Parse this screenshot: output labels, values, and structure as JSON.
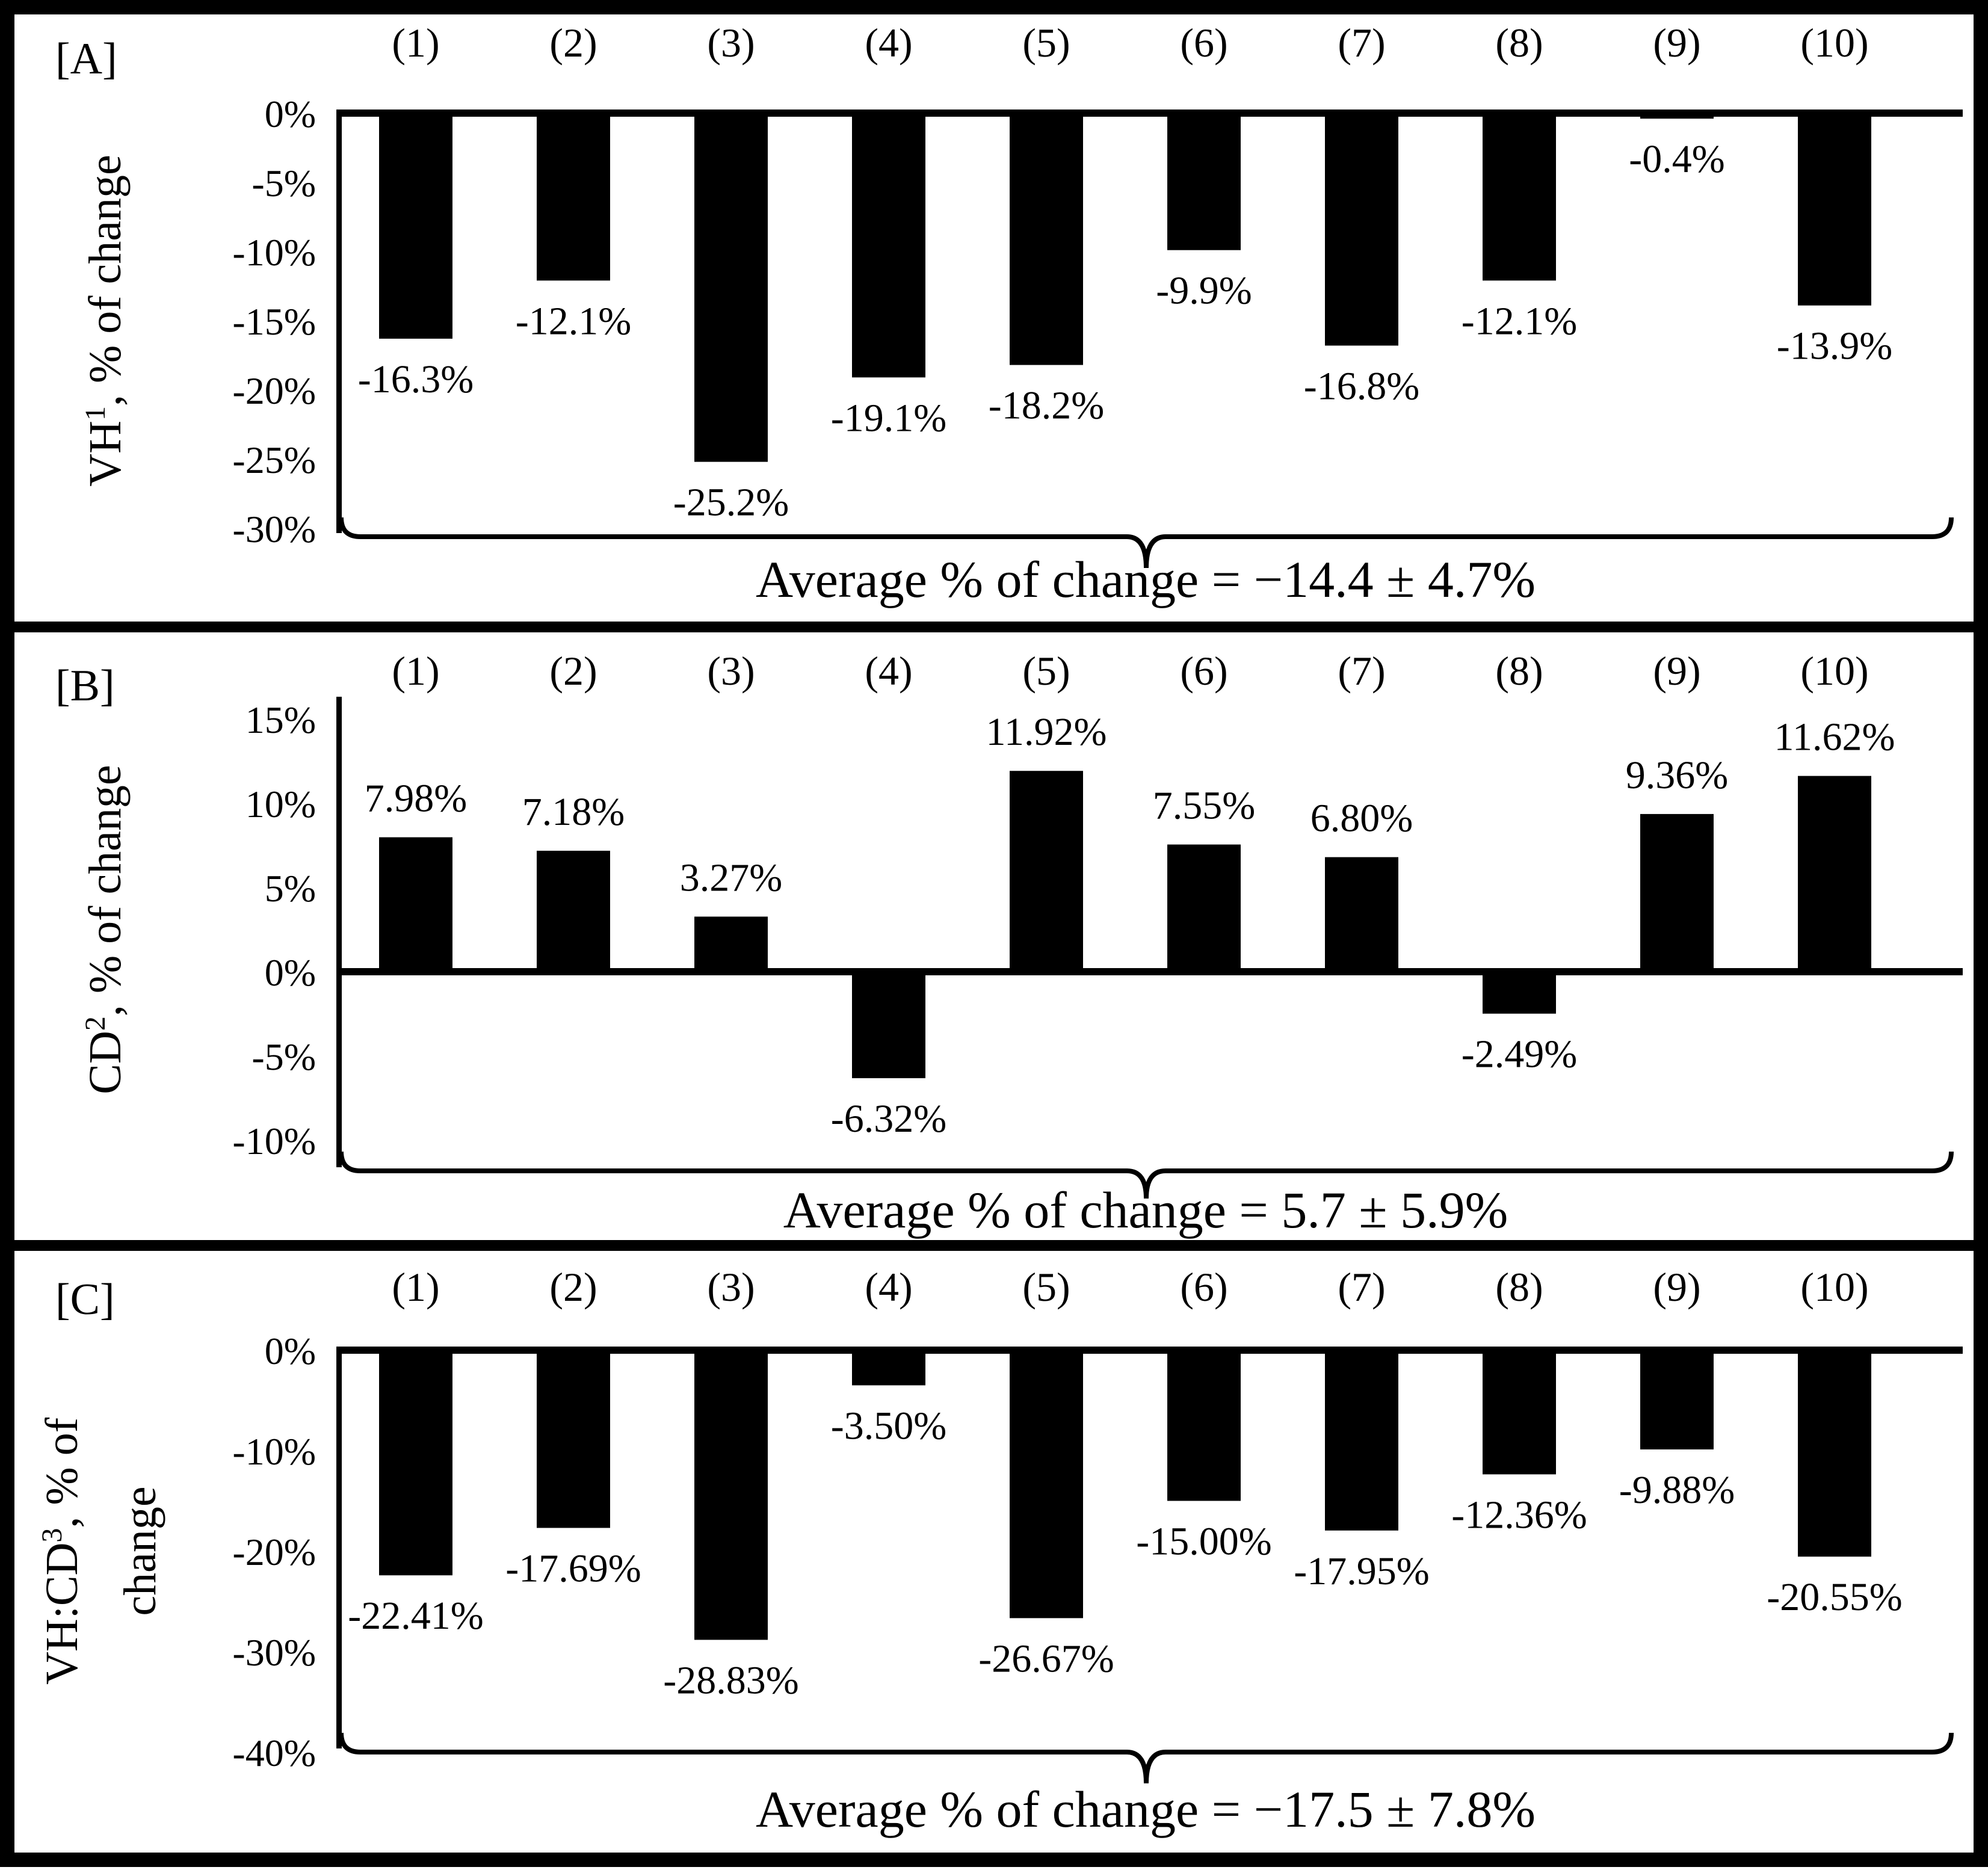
{
  "figure": {
    "background": "#ffffff",
    "border_color": "#000000",
    "bar_color": "#000000"
  },
  "chart_data": [
    {
      "type": "bar",
      "panel_label": "[A]",
      "ylabel": "VH¹, % of change",
      "ylabel_lines": [
        {
          "pre": "VH",
          "sup": "1",
          "post": ", % of change"
        }
      ],
      "categories": [
        "(1)",
        "(2)",
        "(3)",
        "(4)",
        "(5)",
        "(6)",
        "(7)",
        "(8)",
        "(9)",
        "(10)"
      ],
      "values": [
        -16.3,
        -12.1,
        -25.2,
        -19.1,
        -18.2,
        -9.9,
        -16.8,
        -12.1,
        -0.4,
        -13.9
      ],
      "data_labels": [
        "-16.3%",
        "-12.1%",
        "-25.2%",
        "-19.1%",
        "-18.2%",
        "-9.9%",
        "-16.8%",
        "-12.1%",
        "-0.4%",
        "-13.9%"
      ],
      "ylim": [
        -30,
        0
      ],
      "yticks": [
        0,
        -5,
        -10,
        -15,
        -20,
        -25,
        -30
      ],
      "ytick_labels": [
        "0%",
        "-5%",
        "-10%",
        "-15%",
        "-20%",
        "-25%",
        "-30%"
      ],
      "grid": false,
      "legend": "none",
      "annotation": "Average % of change = −14.4 ± 4.7%"
    },
    {
      "type": "bar",
      "panel_label": "[B]",
      "ylabel": "CD², % of change",
      "ylabel_lines": [
        {
          "pre": "CD",
          "sup": "2",
          "post": ", % of change"
        }
      ],
      "categories": [
        "(1)",
        "(2)",
        "(3)",
        "(4)",
        "(5)",
        "(6)",
        "(7)",
        "(8)",
        "(9)",
        "(10)"
      ],
      "values": [
        7.98,
        7.18,
        3.27,
        -6.32,
        11.92,
        7.55,
        6.8,
        -2.49,
        9.36,
        11.62
      ],
      "data_labels": [
        "7.98%",
        "7.18%",
        "3.27%",
        "-6.32%",
        "11.92%",
        "7.55%",
        "6.80%",
        "-2.49%",
        "9.36%",
        "11.62%"
      ],
      "ylim": [
        -10,
        15
      ],
      "yticks": [
        15,
        10,
        5,
        0,
        -5,
        -10
      ],
      "ytick_labels": [
        "15%",
        "10%",
        "5%",
        "0%",
        "-5%",
        "-10%"
      ],
      "grid": false,
      "legend": "none",
      "annotation": "Average % of change = 5.7 ± 5.9%"
    },
    {
      "type": "bar",
      "panel_label": "[C]",
      "ylabel": "VH:CD³, % of change",
      "ylabel_lines": [
        {
          "pre": "VH:CD",
          "sup": "3",
          "post": ", % of"
        },
        {
          "pre": "change",
          "sup": "",
          "post": ""
        }
      ],
      "categories": [
        "(1)",
        "(2)",
        "(3)",
        "(4)",
        "(5)",
        "(6)",
        "(7)",
        "(8)",
        "(9)",
        "(10)"
      ],
      "values": [
        -22.41,
        -17.69,
        -28.83,
        -3.5,
        -26.67,
        -15.0,
        -17.95,
        -12.36,
        -9.88,
        -20.55
      ],
      "data_labels": [
        "-22.41%",
        "-17.69%",
        "-28.83%",
        "-3.50%",
        "-26.67%",
        "-15.00%",
        "-17.95%",
        "-12.36%",
        "-9.88%",
        "-20.55%"
      ],
      "ylim": [
        -40,
        0
      ],
      "yticks": [
        0,
        -10,
        -20,
        -30,
        -40
      ],
      "ytick_labels": [
        "0%",
        "-10%",
        "-20%",
        "-30%",
        "-40%"
      ],
      "grid": false,
      "legend": "none",
      "annotation": "Average % of change = −17.5 ± 7.8%"
    }
  ]
}
